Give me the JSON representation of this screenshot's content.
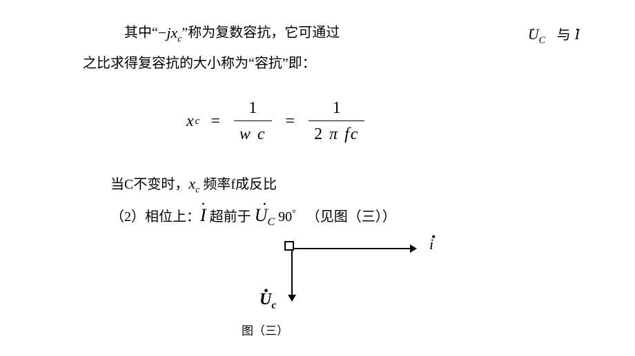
{
  "para1": {
    "pre": "其中“",
    "jxc_minus": "−",
    "jxc_j": "j",
    "jxc_x": "x",
    "jxc_sub": "c",
    "mid": "”称为复数容抗，它可通过",
    "tail_u": "U",
    "tail_u_sub": "C",
    "tail_i": "I",
    "tail_sep": "与",
    "line2": "之比求得复容抗的大小称为“容抗”即："
  },
  "equation": {
    "x": "x",
    "x_sub": "c",
    "eq": "=",
    "num1": "1",
    "den1_w": "w",
    "den1_c": "c",
    "num2": "1",
    "den2_2": "2",
    "den2_pi": "π",
    "den2_f": "f",
    "den2_c": "c"
  },
  "para2": {
    "pre": "当C不变时，",
    "x": "x",
    "x_sub": "c",
    "post": " 频率f成反比"
  },
  "para3": {
    "label": "（2）相位上：",
    "I": "I",
    "mid": " 超前于 ",
    "U": "U",
    "U_sub": "C",
    "angle": " 90",
    "deg": "°",
    "post": "   （见图（三））"
  },
  "diagram": {
    "i_label": "i",
    "uc_U": "U",
    "uc_sub": "c"
  },
  "caption": "图（三）",
  "colors": {
    "text": "#000000",
    "background": "#ffffff"
  },
  "fonts": {
    "body": "SimSun",
    "math": "Times New Roman",
    "body_size": 20,
    "math_size": 24
  }
}
